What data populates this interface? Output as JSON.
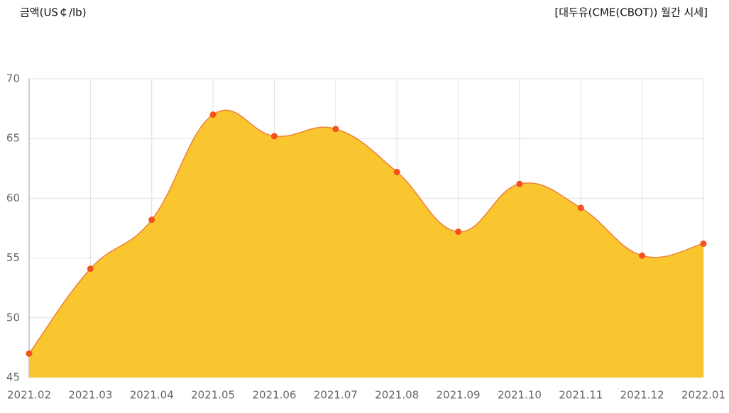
{
  "chart_data": {
    "type": "area",
    "title": "[대두유(CME(CBOT)) 월간 시세]",
    "y_label": "금액(US￠/lb)",
    "categories": [
      "2021.02",
      "2021.03",
      "2021.04",
      "2021.05",
      "2021.06",
      "2021.07",
      "2021.08",
      "2021.09",
      "2021.10",
      "2021.11",
      "2021.12",
      "2022.01"
    ],
    "values": [
      47.0,
      54.1,
      58.2,
      67.0,
      65.2,
      65.8,
      62.2,
      57.2,
      61.2,
      59.2,
      55.2,
      56.2
    ],
    "ylim": [
      45,
      70
    ],
    "yticks": [
      45,
      50,
      55,
      60,
      65,
      70
    ],
    "fill_color": "#f9c62f",
    "line_color": "#f0813a",
    "point_color": "#f4511e",
    "grid": true
  }
}
